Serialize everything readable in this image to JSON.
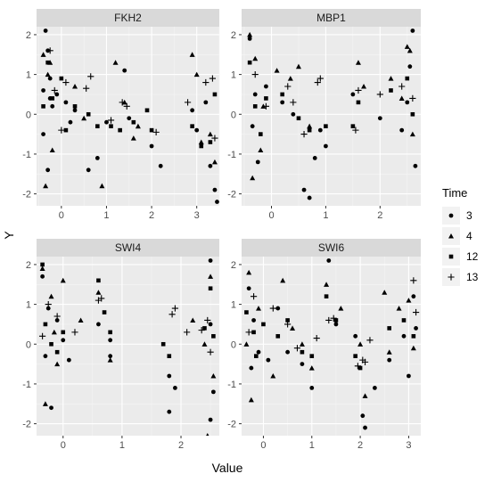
{
  "chart_data": {
    "type": "scatter",
    "facet_wrap": true,
    "xlabel": "Value",
    "ylabel": "Y",
    "legend": {
      "title": "Time",
      "position": "right",
      "entries": [
        {
          "label": "3",
          "shape": "circle"
        },
        {
          "label": "4",
          "shape": "triangle"
        },
        {
          "label": "12",
          "shape": "square"
        },
        {
          "label": "13",
          "shape": "plus"
        }
      ]
    },
    "grid": true,
    "panels": [
      {
        "title": "FKH2",
        "xlim": [
          -0.55,
          3.5
        ],
        "ylim": [
          -2.3,
          2.2
        ],
        "xticks": [
          0,
          1,
          2,
          3
        ],
        "yticks": [
          -2,
          -1,
          0,
          1,
          2
        ],
        "series": {
          "3": [
            [
              -0.35,
              2.1
            ],
            [
              -0.3,
              1.6
            ],
            [
              -0.25,
              0.9
            ],
            [
              -0.4,
              -0.5
            ],
            [
              -0.2,
              0.2
            ],
            [
              -0.3,
              -1.4
            ],
            [
              -0.25,
              0.4
            ],
            [
              -0.1,
              0.5
            ],
            [
              0.3,
              0.1
            ],
            [
              0.2,
              -0.2
            ],
            [
              0.6,
              -1.4
            ],
            [
              0.8,
              -1.1
            ],
            [
              1.0,
              -0.2
            ],
            [
              1.4,
              1.1
            ],
            [
              1.5,
              -0.1
            ],
            [
              2.0,
              -0.8
            ],
            [
              2.2,
              -1.3
            ],
            [
              2.9,
              0.1
            ],
            [
              3.0,
              -0.4
            ],
            [
              3.3,
              -1.3
            ],
            [
              3.4,
              -1.9
            ],
            [
              3.45,
              -2.2
            ],
            [
              3.2,
              0.3
            ],
            [
              -0.4,
              0.6
            ],
            [
              0.1,
              0.3
            ]
          ],
          "4": [
            [
              -0.3,
              1.0
            ],
            [
              -0.35,
              -1.8
            ],
            [
              -0.25,
              1.3
            ],
            [
              -0.2,
              -0.9
            ],
            [
              0.3,
              0.7
            ],
            [
              0.5,
              -0.1
            ],
            [
              0.9,
              -1.8
            ],
            [
              1.2,
              1.3
            ],
            [
              1.4,
              0.3
            ],
            [
              1.6,
              -0.6
            ],
            [
              1.7,
              -0.3
            ],
            [
              2.9,
              1.5
            ],
            [
              3.0,
              1.0
            ],
            [
              3.3,
              -0.5
            ],
            [
              3.4,
              -1.2
            ],
            [
              -0.4,
              1.5
            ],
            [
              3.1,
              -0.7
            ]
          ],
          "12": [
            [
              -0.3,
              1.3
            ],
            [
              -0.2,
              0.4
            ],
            [
              0.0,
              0.9
            ],
            [
              0.1,
              -0.4
            ],
            [
              0.3,
              0.2
            ],
            [
              0.6,
              0.0
            ],
            [
              0.8,
              -0.3
            ],
            [
              1.1,
              -0.3
            ],
            [
              1.3,
              -0.4
            ],
            [
              1.6,
              -0.2
            ],
            [
              1.9,
              0.1
            ],
            [
              2.0,
              -0.4
            ],
            [
              2.9,
              -0.3
            ],
            [
              3.1,
              -0.8
            ],
            [
              3.3,
              -0.7
            ],
            [
              -0.4,
              0.2
            ],
            [
              3.4,
              0.5
            ]
          ],
          "13": [
            [
              -0.25,
              1.6
            ],
            [
              0.1,
              0.8
            ],
            [
              0.55,
              0.65
            ],
            [
              0.65,
              0.95
            ],
            [
              1.1,
              -0.15
            ],
            [
              1.35,
              0.3
            ],
            [
              1.45,
              0.2
            ],
            [
              2.1,
              -0.45
            ],
            [
              2.8,
              0.3
            ],
            [
              3.2,
              0.8
            ],
            [
              3.35,
              0.9
            ],
            [
              3.4,
              -0.6
            ],
            [
              -0.15,
              0.6
            ],
            [
              0.0,
              -0.4
            ]
          ]
        }
      },
      {
        "title": "MBP1",
        "xlim": [
          -0.55,
          2.75
        ],
        "ylim": [
          -2.3,
          2.2
        ],
        "xticks": [
          0,
          1,
          2
        ],
        "yticks": [
          -2,
          -1,
          0,
          1,
          2
        ],
        "series": {
          "3": [
            [
              -0.4,
              1.9
            ],
            [
              -0.35,
              -0.3
            ],
            [
              -0.3,
              0.5
            ],
            [
              -0.25,
              -1.2
            ],
            [
              0.4,
              0.0
            ],
            [
              0.6,
              -1.9
            ],
            [
              0.7,
              -2.1
            ],
            [
              0.8,
              -1.1
            ],
            [
              0.9,
              -0.4
            ],
            [
              1.0,
              -0.8
            ],
            [
              1.5,
              0.5
            ],
            [
              2.0,
              -0.1
            ],
            [
              2.4,
              -0.4
            ],
            [
              2.55,
              1.2
            ],
            [
              2.6,
              2.1
            ],
            [
              2.65,
              -1.3
            ],
            [
              2.5,
              0.3
            ],
            [
              -0.1,
              0.7
            ],
            [
              0.2,
              0.3
            ]
          ],
          "4": [
            [
              -0.4,
              2.0
            ],
            [
              -0.35,
              -1.6
            ],
            [
              -0.3,
              1.4
            ],
            [
              -0.2,
              -0.9
            ],
            [
              0.1,
              1.1
            ],
            [
              0.35,
              0.9
            ],
            [
              0.5,
              1.2
            ],
            [
              0.7,
              -0.3
            ],
            [
              1.6,
              1.3
            ],
            [
              1.7,
              0.7
            ],
            [
              2.2,
              0.9
            ],
            [
              2.4,
              0.4
            ],
            [
              2.55,
              1.6
            ],
            [
              2.6,
              -0.5
            ],
            [
              -0.15,
              0.2
            ],
            [
              2.5,
              1.7
            ]
          ],
          "12": [
            [
              -0.4,
              1.3
            ],
            [
              -0.3,
              0.2
            ],
            [
              -0.1,
              0.4
            ],
            [
              0.2,
              0.5
            ],
            [
              0.5,
              -0.1
            ],
            [
              0.7,
              -0.4
            ],
            [
              1.0,
              -0.3
            ],
            [
              1.5,
              -0.3
            ],
            [
              1.6,
              0.3
            ],
            [
              2.2,
              0.6
            ],
            [
              2.5,
              0.9
            ],
            [
              2.6,
              0.0
            ],
            [
              -0.2,
              -0.5
            ]
          ],
          "13": [
            [
              -0.3,
              1.0
            ],
            [
              0.3,
              0.7
            ],
            [
              0.6,
              -0.5
            ],
            [
              0.85,
              0.8
            ],
            [
              0.9,
              0.9
            ],
            [
              1.55,
              -0.4
            ],
            [
              1.6,
              0.6
            ],
            [
              2.0,
              0.5
            ],
            [
              2.4,
              0.7
            ],
            [
              2.6,
              0.4
            ],
            [
              -0.1,
              0.2
            ],
            [
              0.4,
              0.3
            ]
          ]
        }
      },
      {
        "title": "SWI4",
        "xlim": [
          -0.45,
          2.65
        ],
        "ylim": [
          -2.3,
          2.2
        ],
        "xticks": [
          0,
          1,
          2
        ],
        "yticks": [
          -2,
          -1,
          0,
          1,
          2
        ],
        "series": {
          "3": [
            [
              -0.35,
              1.7
            ],
            [
              -0.3,
              -0.3
            ],
            [
              -0.25,
              0.9
            ],
            [
              -0.2,
              -1.6
            ],
            [
              0.0,
              0.1
            ],
            [
              0.1,
              -0.4
            ],
            [
              0.6,
              0.5
            ],
            [
              0.8,
              0.1
            ],
            [
              0.8,
              -0.3
            ],
            [
              1.8,
              -0.8
            ],
            [
              1.8,
              -1.7
            ],
            [
              1.9,
              -1.1
            ],
            [
              2.5,
              2.1
            ],
            [
              2.5,
              -1.9
            ],
            [
              2.55,
              -1.2
            ],
            [
              2.5,
              0.5
            ],
            [
              -0.1,
              0.6
            ]
          ],
          "4": [
            [
              -0.35,
              1.9
            ],
            [
              -0.3,
              -1.5
            ],
            [
              -0.2,
              1.2
            ],
            [
              -0.1,
              -0.5
            ],
            [
              0.0,
              1.6
            ],
            [
              0.3,
              0.6
            ],
            [
              0.6,
              1.3
            ],
            [
              0.8,
              -0.4
            ],
            [
              2.2,
              0.6
            ],
            [
              2.4,
              0.0
            ],
            [
              2.45,
              -2.3
            ],
            [
              2.5,
              1.7
            ],
            [
              2.55,
              -0.8
            ],
            [
              -0.15,
              0.3
            ]
          ],
          "12": [
            [
              -0.35,
              2.0
            ],
            [
              -0.3,
              0.5
            ],
            [
              -0.2,
              0.0
            ],
            [
              0.0,
              0.3
            ],
            [
              0.6,
              1.6
            ],
            [
              0.7,
              0.8
            ],
            [
              0.8,
              0.3
            ],
            [
              1.7,
              0.0
            ],
            [
              1.8,
              -0.3
            ],
            [
              2.4,
              0.4
            ],
            [
              2.5,
              1.4
            ],
            [
              2.55,
              0.2
            ],
            [
              -0.1,
              -0.2
            ]
          ],
          "13": [
            [
              -0.25,
              1.0
            ],
            [
              -0.1,
              0.7
            ],
            [
              0.2,
              0.3
            ],
            [
              0.6,
              1.1
            ],
            [
              0.65,
              1.15
            ],
            [
              1.85,
              0.75
            ],
            [
              1.9,
              0.9
            ],
            [
              2.1,
              0.3
            ],
            [
              2.35,
              0.35
            ],
            [
              2.45,
              0.6
            ],
            [
              2.5,
              -0.2
            ],
            [
              -0.35,
              0.2
            ]
          ]
        }
      },
      {
        "title": "SWI6",
        "xlim": [
          -0.45,
          3.25
        ],
        "ylim": [
          -2.3,
          2.2
        ],
        "xticks": [
          0,
          1,
          2,
          3
        ],
        "yticks": [
          -2,
          -1,
          0,
          1,
          2
        ],
        "series": {
          "3": [
            [
              -0.3,
              1.4
            ],
            [
              -0.25,
              -0.6
            ],
            [
              -0.2,
              0.6
            ],
            [
              0.1,
              -0.4
            ],
            [
              0.3,
              0.9
            ],
            [
              0.5,
              -0.2
            ],
            [
              0.8,
              -0.5
            ],
            [
              1.0,
              -1.1
            ],
            [
              1.35,
              2.1
            ],
            [
              1.5,
              0.5
            ],
            [
              1.9,
              0.2
            ],
            [
              2.05,
              -1.8
            ],
            [
              2.1,
              -2.1
            ],
            [
              2.3,
              -1.1
            ],
            [
              2.6,
              -0.4
            ],
            [
              2.9,
              0.2
            ],
            [
              3.0,
              -0.8
            ],
            [
              3.1,
              1.2
            ],
            [
              3.15,
              0.4
            ],
            [
              -0.1,
              -0.2
            ]
          ],
          "4": [
            [
              -0.3,
              1.8
            ],
            [
              -0.25,
              -1.4
            ],
            [
              -0.1,
              0.9
            ],
            [
              0.2,
              -0.8
            ],
            [
              0.4,
              1.6
            ],
            [
              0.6,
              0.4
            ],
            [
              0.8,
              0.0
            ],
            [
              1.0,
              -0.6
            ],
            [
              1.3,
              1.5
            ],
            [
              1.6,
              0.9
            ],
            [
              2.0,
              0.0
            ],
            [
              2.1,
              -1.3
            ],
            [
              2.5,
              1.3
            ],
            [
              2.8,
              0.9
            ],
            [
              3.0,
              1.1
            ],
            [
              3.1,
              -0.1
            ],
            [
              -0.35,
              0.0
            ],
            [
              2.6,
              -0.2
            ]
          ],
          "12": [
            [
              -0.35,
              0.8
            ],
            [
              -0.2,
              0.3
            ],
            [
              0.0,
              0.5
            ],
            [
              0.3,
              0.2
            ],
            [
              0.5,
              0.6
            ],
            [
              0.8,
              -0.2
            ],
            [
              1.0,
              -0.3
            ],
            [
              1.3,
              1.2
            ],
            [
              1.5,
              0.6
            ],
            [
              1.9,
              -0.3
            ],
            [
              2.0,
              -0.6
            ],
            [
              2.6,
              0.4
            ],
            [
              2.9,
              0.6
            ],
            [
              3.1,
              0.2
            ],
            [
              -0.15,
              -0.3
            ]
          ],
          "13": [
            [
              -0.2,
              1.2
            ],
            [
              0.2,
              0.9
            ],
            [
              0.5,
              0.5
            ],
            [
              1.1,
              0.15
            ],
            [
              1.35,
              0.6
            ],
            [
              1.45,
              0.65
            ],
            [
              1.95,
              -0.55
            ],
            [
              2.05,
              -0.4
            ],
            [
              2.1,
              -0.45
            ],
            [
              2.2,
              0.1
            ],
            [
              3.1,
              1.6
            ],
            [
              3.15,
              0.8
            ],
            [
              -0.3,
              0.3
            ],
            [
              0.7,
              -0.1
            ]
          ]
        }
      }
    ]
  }
}
